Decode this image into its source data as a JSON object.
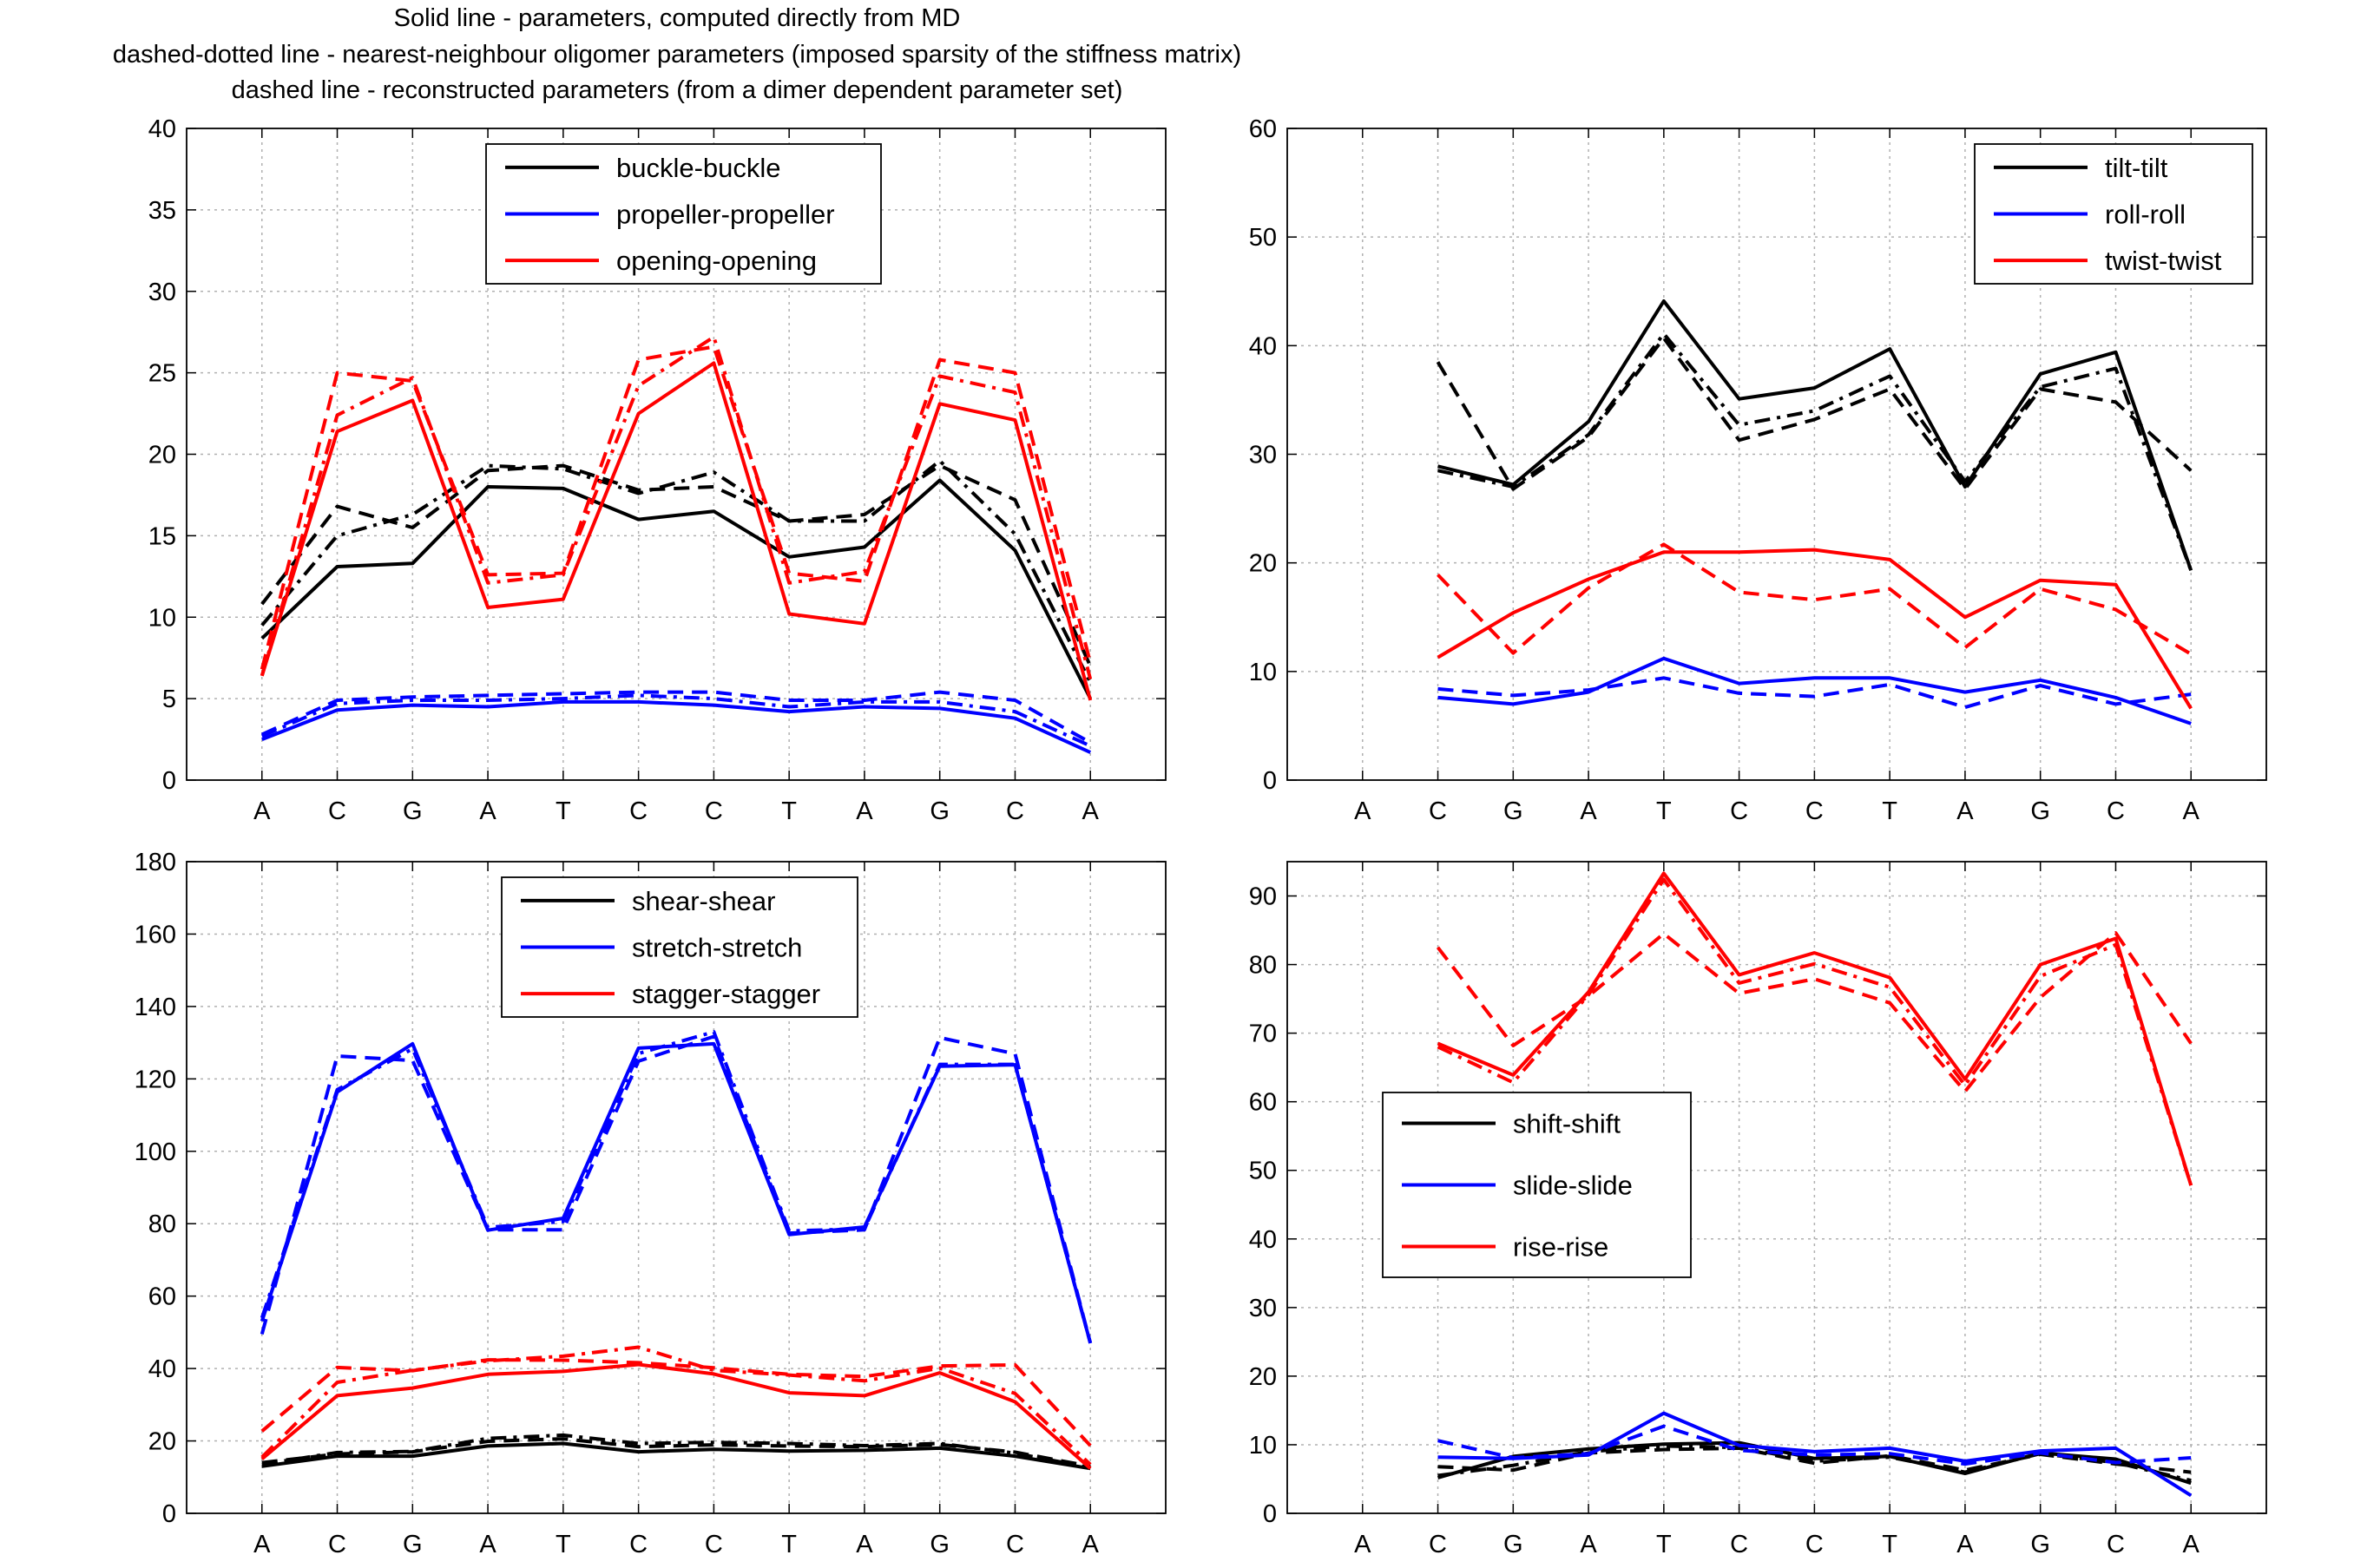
{
  "captions": [
    "Solid line - parameters, computed directly from MD",
    "dashed-dotted line - nearest-neighbour oligomer parameters (imposed sparsity of the stiffness matrix)",
    "dashed line - reconstructed parameters (from a dimer dependent parameter set)"
  ],
  "colors": {
    "black": "#000000",
    "blue": "#0000ff",
    "red": "#ff0000",
    "grid": "#b0b0b0"
  },
  "chart_data": [
    {
      "type": "line",
      "title": "",
      "categories": [
        "A",
        "C",
        "G",
        "A",
        "T",
        "C",
        "C",
        "T",
        "A",
        "G",
        "C",
        "A"
      ],
      "ylim": [
        0,
        40
      ],
      "yticks": [
        0,
        5,
        10,
        15,
        20,
        25,
        30,
        35,
        40
      ],
      "grid": true,
      "legend_position": "top-center",
      "series": [
        {
          "name": "buckle-buckle",
          "color": "black",
          "style": "solid",
          "values": [
            8.7,
            13.1,
            13.3,
            18.0,
            17.9,
            16.0,
            16.5,
            13.7,
            14.3,
            18.4,
            14.1,
            5.0
          ]
        },
        {
          "name": "",
          "color": "black",
          "style": "dashdot",
          "values": [
            9.5,
            15.0,
            16.3,
            19.3,
            19.1,
            17.6,
            18.9,
            15.9,
            15.9,
            19.6,
            15.1,
            6.0
          ]
        },
        {
          "name": "",
          "color": "black",
          "style": "dashed",
          "values": [
            10.8,
            16.8,
            15.5,
            19.0,
            19.3,
            17.8,
            18.0,
            15.9,
            16.3,
            19.3,
            17.2,
            7.0
          ]
        },
        {
          "name": "propeller-propeller",
          "color": "blue",
          "style": "solid",
          "values": [
            2.5,
            4.3,
            4.6,
            4.5,
            4.8,
            4.8,
            4.6,
            4.2,
            4.5,
            4.4,
            3.8,
            1.7
          ]
        },
        {
          "name": "",
          "color": "blue",
          "style": "dashdot",
          "values": [
            2.7,
            4.7,
            4.9,
            4.9,
            5.0,
            5.2,
            5.0,
            4.5,
            4.8,
            4.8,
            4.2,
            2.1
          ]
        },
        {
          "name": "",
          "color": "blue",
          "style": "dashed",
          "values": [
            2.8,
            4.9,
            5.1,
            5.2,
            5.3,
            5.4,
            5.4,
            4.9,
            4.9,
            5.4,
            4.9,
            2.3
          ]
        },
        {
          "name": "opening-opening",
          "color": "red",
          "style": "solid",
          "values": [
            6.4,
            21.4,
            23.3,
            10.6,
            11.1,
            22.5,
            25.6,
            10.2,
            9.6,
            23.1,
            22.1,
            4.9
          ]
        },
        {
          "name": "",
          "color": "red",
          "style": "dashdot",
          "values": [
            6.4,
            22.4,
            24.7,
            12.1,
            12.6,
            24.2,
            27.2,
            12.1,
            12.8,
            24.8,
            23.8,
            6.2
          ]
        },
        {
          "name": "",
          "color": "red",
          "style": "dashed",
          "values": [
            6.8,
            25.0,
            24.5,
            12.6,
            12.7,
            25.8,
            26.6,
            12.7,
            12.2,
            25.8,
            25.0,
            7.2
          ]
        }
      ]
    },
    {
      "type": "line",
      "title": "",
      "categories": [
        "A",
        "C",
        "G",
        "A",
        "T",
        "C",
        "C",
        "T",
        "A",
        "G",
        "C",
        "A"
      ],
      "ylim": [
        0,
        60
      ],
      "yticks": [
        0,
        10,
        20,
        30,
        40,
        50,
        60
      ],
      "grid": true,
      "legend_position": "top-right",
      "series": [
        {
          "name": "tilt-tilt",
          "color": "black",
          "style": "solid",
          "values": [
            null,
            28.9,
            27.2,
            33.0,
            44.1,
            35.1,
            36.1,
            39.7,
            27.0,
            37.4,
            39.4,
            19.3
          ]
        },
        {
          "name": "",
          "color": "black",
          "style": "dashdot",
          "values": [
            null,
            28.5,
            27.0,
            31.8,
            41.1,
            32.7,
            34.0,
            37.2,
            27.5,
            36.2,
            37.9,
            19.3
          ]
        },
        {
          "name": "",
          "color": "black",
          "style": "dashed",
          "values": [
            null,
            38.5,
            26.8,
            31.6,
            40.7,
            31.3,
            33.2,
            36.0,
            26.8,
            36.0,
            34.8,
            28.5
          ]
        },
        {
          "name": "roll-roll",
          "color": "blue",
          "style": "solid",
          "values": [
            null,
            7.6,
            7.0,
            8.1,
            11.2,
            8.9,
            9.4,
            9.4,
            8.1,
            9.2,
            7.6,
            5.2
          ]
        },
        {
          "name": "",
          "color": "blue",
          "style": "dashed",
          "values": [
            null,
            8.4,
            7.8,
            8.3,
            9.4,
            8.0,
            7.7,
            8.8,
            6.7,
            8.7,
            7.0,
            7.9
          ]
        },
        {
          "name": "twist-twist",
          "color": "red",
          "style": "solid",
          "values": [
            null,
            11.3,
            15.4,
            18.5,
            21.0,
            21.0,
            21.2,
            20.3,
            15.0,
            18.4,
            18.0,
            6.6
          ]
        },
        {
          "name": "",
          "color": "red",
          "style": "dashed",
          "values": [
            null,
            18.9,
            11.7,
            17.7,
            21.7,
            17.3,
            16.6,
            17.6,
            12.2,
            17.6,
            15.7,
            11.6
          ]
        }
      ]
    },
    {
      "type": "line",
      "title": "",
      "categories": [
        "A",
        "C",
        "G",
        "A",
        "T",
        "C",
        "C",
        "T",
        "A",
        "G",
        "C",
        "A"
      ],
      "ylim": [
        0,
        180
      ],
      "yticks": [
        0,
        20,
        40,
        60,
        80,
        100,
        120,
        140,
        160,
        180
      ],
      "grid": true,
      "legend_position": "top-center",
      "series": [
        {
          "name": "shear-shear",
          "color": "black",
          "style": "solid",
          "values": [
            13.0,
            15.8,
            15.8,
            18.6,
            19.3,
            17.0,
            17.7,
            17.2,
            17.4,
            18.0,
            15.8,
            12.4
          ]
        },
        {
          "name": "",
          "color": "black",
          "style": "dashdot",
          "values": [
            13.5,
            16.8,
            17.1,
            20.7,
            21.6,
            19.3,
            19.6,
            19.3,
            18.7,
            19.3,
            16.6,
            12.6
          ]
        },
        {
          "name": "",
          "color": "black",
          "style": "dashed",
          "values": [
            14.0,
            16.4,
            17.0,
            19.9,
            20.6,
            18.4,
            18.9,
            18.6,
            18.4,
            19.0,
            16.9,
            13.0
          ]
        },
        {
          "name": "stretch-stretch",
          "color": "blue",
          "style": "solid",
          "values": [
            53.1,
            116.4,
            129.7,
            78.2,
            81.5,
            128.5,
            129.7,
            77.0,
            79.1,
            123.5,
            123.9,
            47.0
          ]
        },
        {
          "name": "",
          "color": "blue",
          "style": "dashdot",
          "values": [
            54.0,
            117.0,
            128.3,
            79.0,
            80.6,
            127.0,
            133.0,
            78.0,
            78.6,
            124.0,
            124.0,
            47.0
          ]
        },
        {
          "name": "",
          "color": "blue",
          "style": "dashed",
          "values": [
            49.5,
            126.3,
            125.1,
            78.3,
            78.3,
            124.9,
            131.7,
            77.4,
            78.3,
            131.4,
            126.9,
            47.0
          ]
        },
        {
          "name": "stagger-stagger",
          "color": "red",
          "style": "solid",
          "values": [
            15.0,
            32.5,
            34.6,
            38.4,
            39.2,
            41.1,
            38.5,
            33.3,
            32.5,
            38.8,
            30.8,
            12.4
          ]
        },
        {
          "name": "",
          "color": "red",
          "style": "dashdot",
          "values": [
            15.5,
            36.2,
            39.5,
            42.1,
            43.4,
            45.9,
            39.5,
            38.2,
            36.6,
            40.1,
            33.1,
            13.5
          ]
        },
        {
          "name": "",
          "color": "red",
          "style": "dashed",
          "values": [
            22.7,
            40.3,
            39.4,
            42.4,
            42.3,
            41.6,
            40.2,
            38.4,
            37.8,
            40.7,
            41.0,
            18.7
          ]
        }
      ]
    },
    {
      "type": "line",
      "title": "",
      "categories": [
        "A",
        "C",
        "G",
        "A",
        "T",
        "C",
        "C",
        "T",
        "A",
        "G",
        "C",
        "A"
      ],
      "ylim": [
        0,
        95
      ],
      "yticks": [
        0,
        10,
        20,
        30,
        40,
        50,
        60,
        70,
        80,
        90
      ],
      "grid": true,
      "legend_position": "left-middle",
      "series": [
        {
          "name": "shift-shift",
          "color": "black",
          "style": "solid",
          "values": [
            null,
            5.2,
            8.3,
            9.4,
            10.1,
            10.3,
            8.0,
            8.3,
            5.8,
            8.8,
            7.9,
            4.4
          ]
        },
        {
          "name": "",
          "color": "black",
          "style": "dashdot",
          "values": [
            null,
            5.5,
            7.0,
            9.0,
            9.8,
            9.6,
            7.6,
            8.2,
            6.0,
            8.7,
            7.4,
            4.8
          ]
        },
        {
          "name": "",
          "color": "black",
          "style": "dashed",
          "values": [
            null,
            6.8,
            6.3,
            8.8,
            9.3,
            9.5,
            7.3,
            8.4,
            6.3,
            8.6,
            7.2,
            6.0
          ]
        },
        {
          "name": "slide-slide",
          "color": "blue",
          "style": "solid",
          "values": [
            null,
            8.2,
            8.0,
            8.5,
            14.6,
            9.9,
            9.0,
            9.5,
            7.6,
            9.1,
            9.5,
            2.6
          ]
        },
        {
          "name": "",
          "color": "blue",
          "style": "dashed",
          "values": [
            null,
            10.6,
            8.1,
            8.7,
            12.7,
            9.2,
            8.5,
            8.7,
            7.2,
            8.8,
            7.4,
            8.1
          ]
        },
        {
          "name": "rise-rise",
          "color": "red",
          "style": "solid",
          "values": [
            null,
            68.5,
            63.9,
            76.0,
            93.3,
            78.5,
            81.7,
            78.1,
            63.3,
            80.0,
            83.8,
            47.8
          ]
        },
        {
          "name": "",
          "color": "red",
          "style": "dashdot",
          "values": [
            null,
            68.0,
            62.8,
            75.6,
            92.4,
            77.3,
            80.1,
            76.7,
            62.4,
            78.3,
            82.9,
            47.8
          ]
        },
        {
          "name": "",
          "color": "red",
          "style": "dashed",
          "values": [
            null,
            82.5,
            68.2,
            75.4,
            84.5,
            75.8,
            77.9,
            74.4,
            61.5,
            75.2,
            84.6,
            68.5
          ]
        }
      ]
    }
  ]
}
